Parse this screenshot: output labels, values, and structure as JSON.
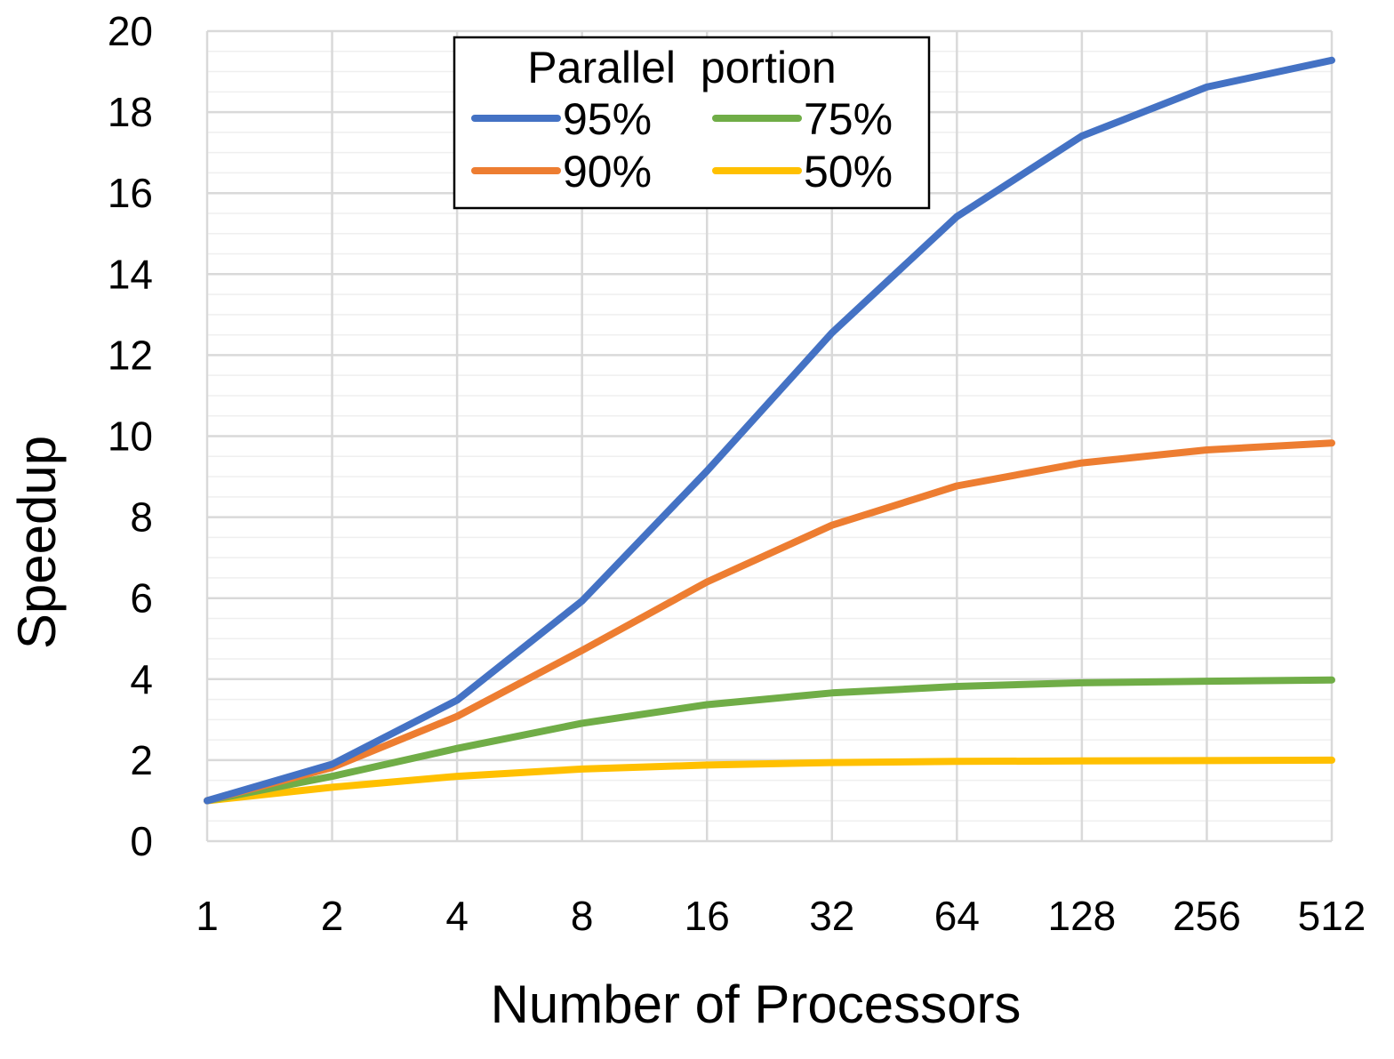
{
  "chart_data": {
    "type": "line",
    "title": "",
    "xlabel": "Number of Processors",
    "ylabel": "Speedup",
    "x_scale": "log2",
    "categories": [
      "1",
      "2",
      "4",
      "8",
      "16",
      "32",
      "64",
      "128",
      "256",
      "512"
    ],
    "ylim": [
      0,
      20
    ],
    "y_ticks": [
      "0",
      "2",
      "4",
      "6",
      "8",
      "10",
      "12",
      "14",
      "16",
      "18",
      "20"
    ],
    "grid": true,
    "legend": {
      "title": "Parallel  portion",
      "placement": "top-center"
    },
    "series": [
      {
        "name": "95%",
        "color": "#4472C4",
        "values": [
          1.0,
          1.9,
          3.48,
          5.93,
          9.14,
          12.55,
          15.42,
          17.41,
          18.62,
          19.28
        ]
      },
      {
        "name": "90%",
        "color": "#ED7D31",
        "values": [
          1.0,
          1.82,
          3.08,
          4.71,
          6.4,
          7.8,
          8.77,
          9.34,
          9.66,
          9.83
        ]
      },
      {
        "name": "75%",
        "color": "#70AD47",
        "values": [
          1.0,
          1.6,
          2.29,
          2.91,
          3.37,
          3.66,
          3.82,
          3.91,
          3.95,
          3.98
        ]
      },
      {
        "name": "50%",
        "color": "#FFC000",
        "values": [
          1.0,
          1.33,
          1.6,
          1.78,
          1.88,
          1.94,
          1.97,
          1.98,
          1.99,
          2.0
        ]
      }
    ]
  }
}
